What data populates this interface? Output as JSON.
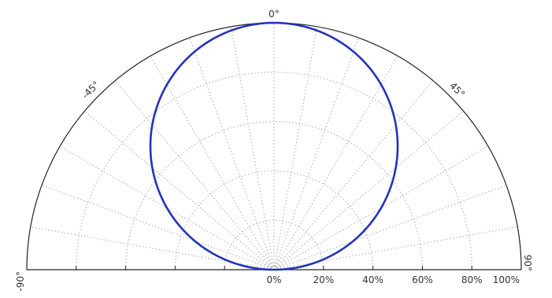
{
  "chart_data": {
    "type": "polar-line",
    "title": "",
    "angle_range_deg": [
      -90,
      90
    ],
    "radial_range": [
      0,
      100
    ],
    "grid": true,
    "angle_gridline_step_deg": 10,
    "radial_gridline_step": 20,
    "angle_tick_labels": [
      {
        "angle": -90,
        "label": "-90°"
      },
      {
        "angle": -45,
        "label": "-45°"
      },
      {
        "angle": 0,
        "label": "0°"
      },
      {
        "angle": 45,
        "label": "45°"
      },
      {
        "angle": 90,
        "label": "90°"
      }
    ],
    "radial_tick_labels": [
      {
        "value": 0,
        "label": "0%"
      },
      {
        "value": 20,
        "label": "20%"
      },
      {
        "value": 40,
        "label": "40%"
      },
      {
        "value": 60,
        "label": "60%"
      },
      {
        "value": 80,
        "label": "80%"
      },
      {
        "value": 100,
        "label": "100%"
      }
    ],
    "series": [
      {
        "color": "#2233bb",
        "function": "cosine",
        "theta": [
          -90,
          -80,
          -70,
          -60,
          -50,
          -40,
          -30,
          -20,
          -10,
          0,
          10,
          20,
          30,
          40,
          50,
          60,
          70,
          80,
          90
        ],
        "r": [
          0,
          17.4,
          34.2,
          50,
          64.3,
          76.6,
          86.6,
          94,
          98.5,
          100,
          98.5,
          94,
          86.6,
          76.6,
          64.3,
          50,
          34.2,
          17.4,
          0
        ]
      }
    ]
  }
}
